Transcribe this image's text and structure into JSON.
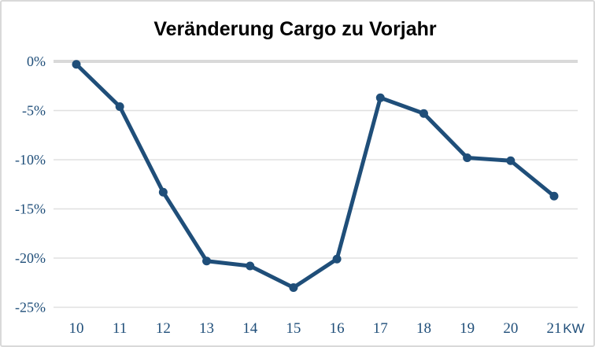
{
  "chart_data": {
    "type": "line",
    "title": "Veränderung Cargo zu Vorjahr",
    "x_unit_label": "KW",
    "categories": [
      "10",
      "11",
      "12",
      "13",
      "14",
      "15",
      "16",
      "17",
      "18",
      "19",
      "20",
      "21"
    ],
    "series": [
      {
        "name": "Veränderung Cargo zu Vorjahr",
        "values": [
          -0.3,
          -4.6,
          -13.3,
          -20.3,
          -20.8,
          -23.0,
          -20.1,
          -3.7,
          -5.3,
          -9.8,
          -10.1,
          -13.7
        ]
      }
    ],
    "xlabel": "",
    "ylabel": "",
    "ylim": [
      -25,
      0
    ],
    "yticks": {
      "values": [
        0,
        -5,
        -10,
        -15,
        -20,
        -25
      ],
      "labels": [
        "0%",
        "-5%",
        "-10%",
        "-15%",
        "-20%",
        "-25%"
      ]
    },
    "grid": "horizontal",
    "legend": "none",
    "colors": {
      "line": "#1F4E79",
      "marker": "#1F4E79",
      "title": "#1F4E79",
      "tick_label": "#1F4E79",
      "gridline": "#E0E0E0",
      "zero_gridline": "#D9D9D9",
      "border": "#D9D9D9",
      "background": "#FFFFFF"
    }
  }
}
